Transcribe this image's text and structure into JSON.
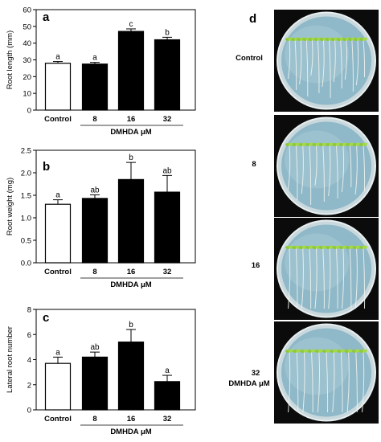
{
  "panel_d": {
    "letter": "d",
    "plate_labels": [
      "Control",
      "8",
      "16",
      "32",
      "DMHDA μM"
    ]
  },
  "colors": {
    "control_bar": "#ffffff",
    "treatment_bar": "#000000",
    "plate_agar": "#8fb8c8",
    "seedling": "#8fc93a"
  },
  "chart_data": [
    {
      "type": "bar",
      "panel_letter": "a",
      "categories": [
        "Control",
        "8",
        "16",
        "32"
      ],
      "values": [
        28,
        27.5,
        47,
        42
      ],
      "errors": [
        1,
        1,
        1.5,
        1.5
      ],
      "significance": [
        "a",
        "a",
        "c",
        "b"
      ],
      "ylabel": "Root length (mm)",
      "xlabel": "DMHDA μM",
      "ylim": [
        0,
        60
      ],
      "yticks": [
        0,
        10,
        20,
        30,
        40,
        50,
        60
      ],
      "grid": false
    },
    {
      "type": "bar",
      "panel_letter": "b",
      "categories": [
        "Control",
        "8",
        "16",
        "32"
      ],
      "values": [
        1.3,
        1.43,
        1.85,
        1.57
      ],
      "errors": [
        0.1,
        0.08,
        0.38,
        0.37
      ],
      "significance": [
        "a",
        "ab",
        "b",
        "ab"
      ],
      "ylabel": "Root weight (mg)",
      "xlabel": "DMHDA μM",
      "ylim": [
        0,
        2.5
      ],
      "yticks": [
        0.0,
        0.5,
        1.0,
        1.5,
        2.0,
        2.5
      ],
      "grid": false
    },
    {
      "type": "bar",
      "panel_letter": "c",
      "categories": [
        "Control",
        "8",
        "16",
        "32"
      ],
      "values": [
        3.7,
        4.2,
        5.4,
        2.25
      ],
      "errors": [
        0.5,
        0.4,
        1.0,
        0.5
      ],
      "significance": [
        "a",
        "ab",
        "b",
        "a"
      ],
      "ylabel": "Lateral root number",
      "xlabel": "DMHDA μM",
      "ylim": [
        0,
        8
      ],
      "yticks": [
        0,
        2,
        4,
        6,
        8
      ],
      "grid": false
    }
  ]
}
